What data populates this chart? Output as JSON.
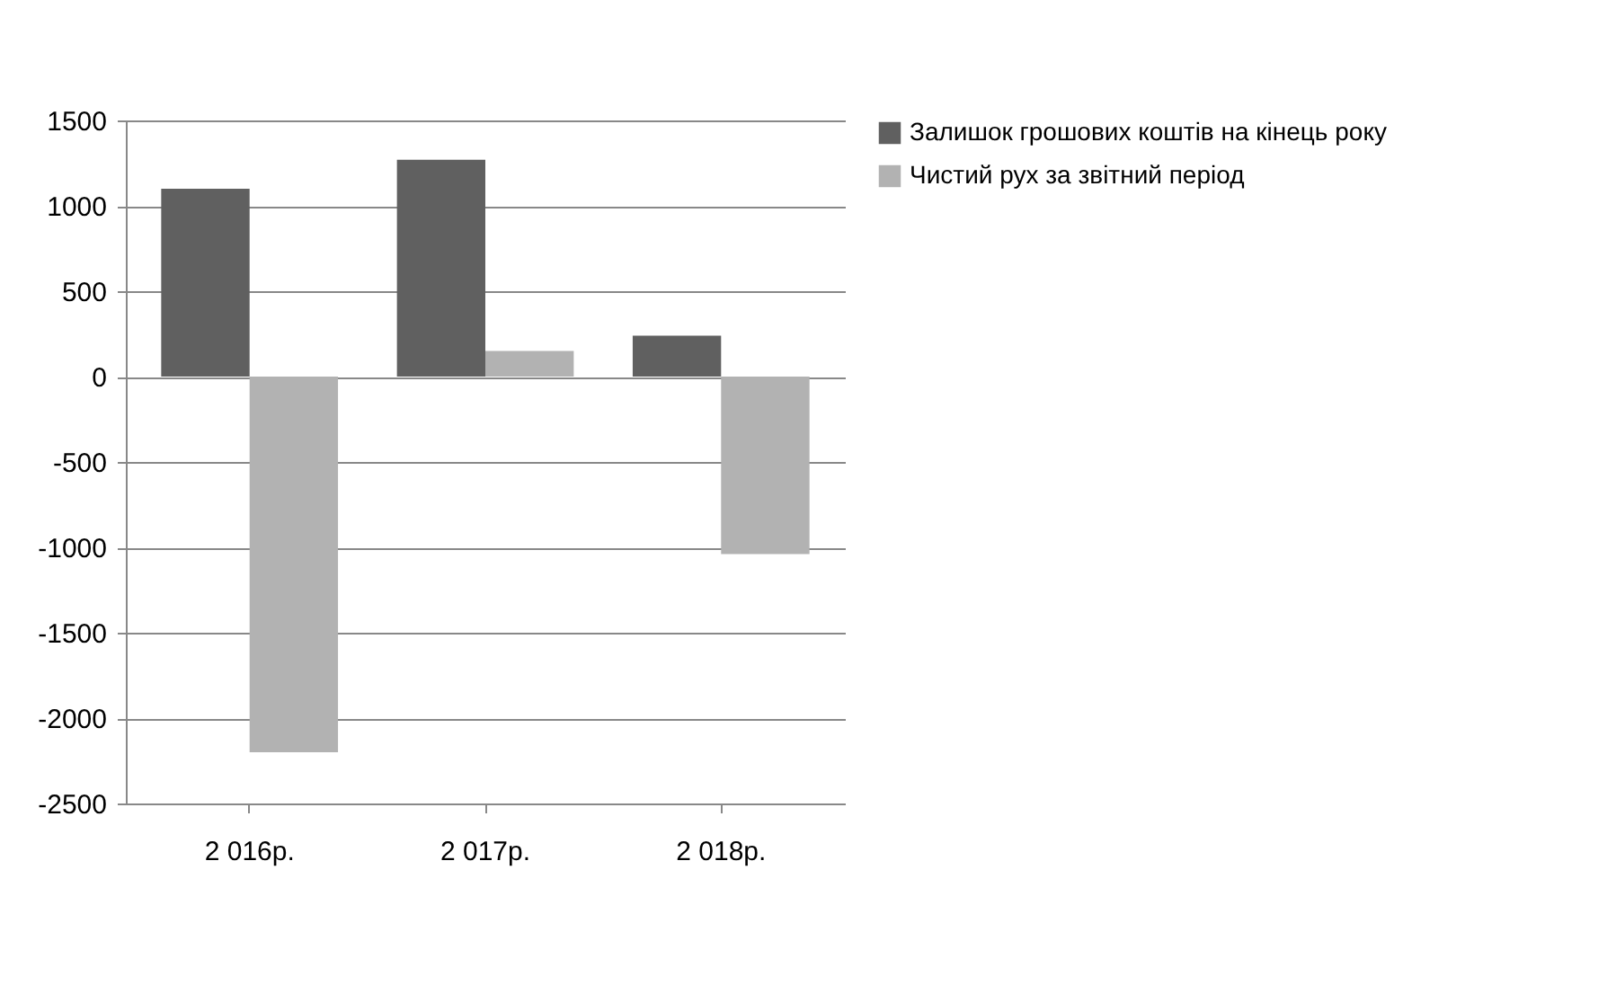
{
  "chart_data": {
    "type": "bar",
    "categories": [
      "2 016р.",
      "2 017р.",
      "2 018р."
    ],
    "series": [
      {
        "name": "Залишок грошових коштів на кінець року",
        "color": "#606060",
        "values": [
          1100,
          1270,
          240
        ]
      },
      {
        "name": "Чистий рух за звітний період",
        "color": "#b2b2b2",
        "values": [
          -2200,
          150,
          -1040
        ]
      }
    ],
    "ylim": [
      -2500,
      1500
    ],
    "yticks": [
      -2500,
      -2000,
      -1500,
      -1000,
      -500,
      0,
      500,
      1000,
      1500
    ],
    "grid": "y",
    "legend": "right"
  }
}
